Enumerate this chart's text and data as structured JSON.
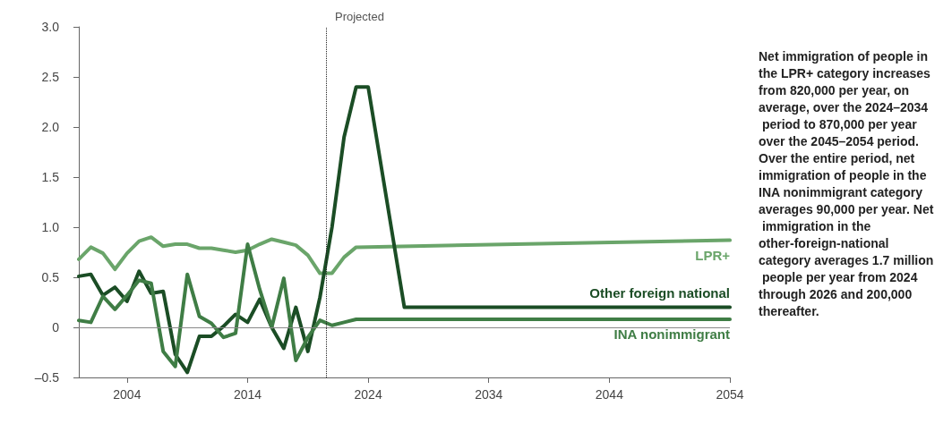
{
  "chart_data": {
    "type": "line",
    "xlim": [
      2000,
      2054
    ],
    "xticks": [
      2004,
      2014,
      2024,
      2034,
      2044,
      2054
    ],
    "ylim": [
      -0.5,
      3.0
    ],
    "yticks": [
      {
        "value": -0.5,
        "label": "–0.5"
      },
      {
        "value": 0,
        "label": "0"
      },
      {
        "value": 0.5,
        "label": "0.5"
      },
      {
        "value": 1.0,
        "label": "1.0"
      },
      {
        "value": 1.5,
        "label": "1.5"
      },
      {
        "value": 2.0,
        "label": "2.0"
      },
      {
        "value": 2.5,
        "label": "2.5"
      },
      {
        "value": 3.0,
        "label": "3.0"
      }
    ],
    "grid": false,
    "legend": false,
    "marker": "none",
    "line_style": "solid",
    "series": [
      {
        "name": "LPR+",
        "color": "#6aa56a",
        "x": [
          2000,
          2001,
          2002,
          2003,
          2004,
          2005,
          2006,
          2007,
          2008,
          2009,
          2010,
          2011,
          2012,
          2013,
          2014,
          2015,
          2016,
          2017,
          2018,
          2019,
          2020,
          2021,
          2022,
          2023,
          2054
        ],
        "values": [
          0.68,
          0.8,
          0.74,
          0.58,
          0.74,
          0.86,
          0.9,
          0.81,
          0.83,
          0.83,
          0.79,
          0.79,
          0.77,
          0.75,
          0.77,
          0.83,
          0.88,
          0.85,
          0.82,
          0.72,
          0.54,
          0.54,
          0.7,
          0.8,
          0.87
        ]
      },
      {
        "name": "Other foreign national",
        "color": "#1b4d25",
        "x": [
          2000,
          2001,
          2002,
          2003,
          2004,
          2005,
          2006,
          2007,
          2008,
          2009,
          2010,
          2011,
          2012,
          2013,
          2014,
          2015,
          2016,
          2017,
          2018,
          2019,
          2020,
          2021,
          2022,
          2023,
          2024,
          2027,
          2054
        ],
        "values": [
          0.51,
          0.53,
          0.32,
          0.4,
          0.26,
          0.56,
          0.34,
          0.36,
          -0.27,
          -0.45,
          -0.09,
          -0.09,
          0.01,
          0.13,
          0.05,
          0.28,
          0.0,
          -0.21,
          0.2,
          -0.24,
          0.3,
          1.0,
          1.9,
          2.4,
          2.4,
          0.2,
          0.2
        ]
      },
      {
        "name": "INA nonimmigrant",
        "color": "#3f7d45",
        "x": [
          2000,
          2001,
          2002,
          2003,
          2004,
          2005,
          2006,
          2007,
          2008,
          2009,
          2010,
          2011,
          2012,
          2013,
          2014,
          2015,
          2016,
          2017,
          2018,
          2019,
          2020,
          2021,
          2022,
          2023,
          2054
        ],
        "values": [
          0.07,
          0.05,
          0.31,
          0.18,
          0.32,
          0.47,
          0.44,
          -0.24,
          -0.39,
          0.53,
          0.11,
          0.04,
          -0.1,
          -0.06,
          0.83,
          0.38,
          0.0,
          0.49,
          -0.33,
          -0.1,
          0.07,
          0.02,
          0.05,
          0.08,
          0.08
        ]
      }
    ],
    "ref_lines": [
      {
        "axis": "x",
        "value": 2020.5,
        "label": "Projected",
        "color": "#222222",
        "line_style": "dotted"
      },
      {
        "axis": "y",
        "value": 0,
        "label": null,
        "color": "#888888",
        "line_style": "solid"
      }
    ],
    "annotations": [
      "Net immigration of people in the LPR+ category increases from 820,000 per year, on average, over the 2024–2034 period to 870,000 per year over the 2045–2054 period. Over the entire period, net immigration of people in the INA nonimmigrant category averages 90,000 per year. Net immigration in the other-foreign-national category averages 1.7 million people per year from 2024 through 2026 and 200,000 thereafter."
    ]
  }
}
